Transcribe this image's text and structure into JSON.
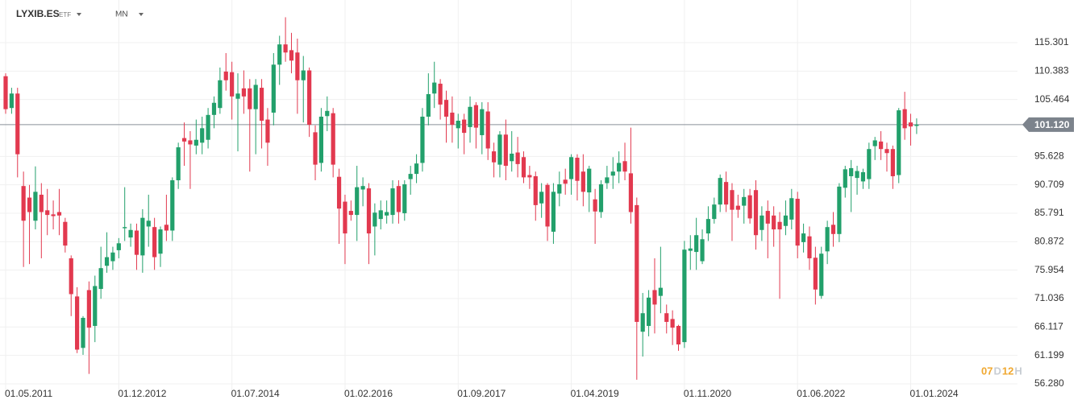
{
  "chart_data": {
    "type": "candlestick",
    "title": "LYXIB.ES",
    "instrument_type": "ETF",
    "timeframe": "MN",
    "countdown": [
      "07",
      "D",
      "12",
      "H"
    ],
    "up_color": "#22a06b",
    "down_color": "#e2394f",
    "x": [
      "01.05.2011",
      "01.06.2011",
      "01.07.2011",
      "01.08.2011",
      "01.09.2011",
      "01.10.2011",
      "01.11.2011",
      "01.12.2011",
      "01.01.2012",
      "01.02.2012",
      "01.03.2012",
      "01.04.2012",
      "01.05.2012",
      "01.06.2012",
      "01.07.2012",
      "01.08.2012",
      "01.09.2012",
      "01.10.2012",
      "01.11.2012",
      "01.12.2012",
      "01.01.2013",
      "01.02.2013",
      "01.03.2013",
      "01.04.2013",
      "01.05.2013",
      "01.06.2013",
      "01.07.2013",
      "01.08.2013",
      "01.09.2013",
      "01.10.2013",
      "01.11.2013",
      "01.12.2013",
      "01.01.2014",
      "01.02.2014",
      "01.03.2014",
      "01.04.2014",
      "01.05.2014",
      "01.06.2014",
      "01.07.2014",
      "01.08.2014",
      "01.09.2014",
      "01.10.2014",
      "01.11.2014",
      "01.12.2014",
      "01.01.2015",
      "01.02.2015",
      "01.03.2015",
      "01.04.2015",
      "01.05.2015",
      "01.06.2015",
      "01.07.2015",
      "01.08.2015",
      "01.09.2015",
      "01.10.2015",
      "01.11.2015",
      "01.12.2015",
      "01.01.2016",
      "01.02.2016",
      "01.03.2016",
      "01.04.2016",
      "01.05.2016",
      "01.06.2016",
      "01.07.2016",
      "01.08.2016",
      "01.09.2016",
      "01.10.2016",
      "01.11.2016",
      "01.12.2016",
      "01.01.2017",
      "01.02.2017",
      "01.03.2017",
      "01.04.2017",
      "01.05.2017",
      "01.06.2017",
      "01.07.2017",
      "01.08.2017",
      "01.09.2017",
      "01.10.2017",
      "01.11.2017",
      "01.12.2017",
      "01.01.2018",
      "01.02.2018",
      "01.03.2018",
      "01.04.2018",
      "01.05.2018",
      "01.06.2018",
      "01.07.2018",
      "01.08.2018",
      "01.09.2018",
      "01.10.2018",
      "01.11.2018",
      "01.12.2018",
      "01.01.2019",
      "01.02.2019",
      "01.03.2019",
      "01.04.2019",
      "01.05.2019",
      "01.06.2019",
      "01.07.2019",
      "01.08.2019",
      "01.09.2019",
      "01.10.2019",
      "01.11.2019",
      "01.12.2019",
      "01.01.2020",
      "01.02.2020",
      "01.03.2020",
      "01.04.2020",
      "01.05.2020",
      "01.06.2020",
      "01.07.2020",
      "01.08.2020",
      "01.09.2020",
      "01.10.2020",
      "01.11.2020",
      "01.12.2020",
      "01.01.2021",
      "01.02.2021",
      "01.03.2021",
      "01.04.2021",
      "01.05.2021",
      "01.06.2021",
      "01.07.2021",
      "01.08.2021",
      "01.09.2021",
      "01.10.2021",
      "01.11.2021",
      "01.12.2021",
      "01.01.2022",
      "01.02.2022",
      "01.03.2022",
      "01.04.2022",
      "01.05.2022",
      "01.06.2022",
      "01.07.2022",
      "01.08.2022",
      "01.09.2022",
      "01.10.2022",
      "01.11.2022",
      "01.12.2022",
      "01.01.2023",
      "01.02.2023",
      "01.03.2023",
      "01.04.2023",
      "01.05.2023",
      "01.06.2023",
      "01.07.2023",
      "01.08.2023",
      "01.09.2023",
      "01.10.2023",
      "01.11.2023",
      "01.12.2023",
      "01.01.2024",
      "01.02.2024"
    ],
    "open": [
      109.5,
      104,
      106.5,
      90.5,
      88.5,
      84.5,
      89,
      86.3,
      85.6,
      86,
      84.3,
      78,
      71.4,
      62.5,
      72.5,
      66.3,
      72.7,
      76.7,
      77.5,
      79.4,
      83.2,
      81.6,
      82.8,
      78.5,
      83.5,
      83.4,
      78.8,
      83.8,
      82.8,
      91.5,
      98.8,
      98.4,
      97.5,
      98,
      98.5,
      102.8,
      104,
      110.3,
      110.2,
      105.6,
      107.4,
      107.4,
      103.8,
      107.5,
      102,
      103.2,
      111.5,
      115,
      114,
      113.6,
      108.8,
      110.5,
      99.8,
      94.5,
      102.6,
      103.1,
      92.1,
      87.8,
      86.2,
      85.5,
      89.9,
      90.1,
      83.5,
      84.8,
      85.4,
      85.5,
      90.5,
      85.8,
      91.7,
      92.6,
      94.5,
      102.5,
      106.5,
      108.2,
      105.4,
      103.2,
      100.5,
      102,
      100.7,
      104.5,
      99.3,
      103.4,
      96.5,
      94.2,
      99.4,
      94.8,
      96.3,
      95.5,
      92.4,
      92.2,
      87.5,
      90.7,
      82.6,
      89.2,
      91.6,
      91.7,
      95.4,
      93,
      89.4,
      88.2,
      86,
      91,
      92.3,
      93,
      94.8,
      92.7,
      87.2,
      65.3,
      66.3,
      72.5,
      71.5,
      68.5,
      67.5,
      66.3,
      63.5,
      79.3,
      79.1,
      77.5,
      82.3,
      84.8,
      87.3,
      91.2,
      89.8,
      87.1,
      87.1,
      88.9,
      89.8,
      82.9,
      86.2,
      85.4,
      84.3,
      83.6,
      84.7,
      88.3,
      80.8,
      81.8,
      78.1,
      71.5,
      79.2,
      83.8,
      82.2,
      90.2,
      92.2,
      91.9,
      91.3,
      91.7,
      97.4,
      98.2,
      96.9,
      96.9,
      92.4,
      103.8,
      101.5,
      100.9
    ],
    "high": [
      110,
      107.5,
      107.5,
      93,
      90.7,
      93.9,
      91,
      90,
      88,
      90,
      85,
      78.5,
      73,
      68,
      74,
      75,
      80,
      82.5,
      80,
      81.5,
      90.3,
      84,
      84,
      86.5,
      89,
      85,
      83.5,
      89,
      92,
      98,
      101.5,
      100,
      102,
      102.5,
      104,
      106,
      111,
      113.5,
      112,
      110,
      110.5,
      109,
      109,
      109,
      104,
      113.5,
      116.5,
      119.7,
      117,
      116,
      113,
      111,
      101,
      104,
      106,
      104,
      93.5,
      89,
      88,
      94,
      92,
      91,
      87.5,
      88,
      88,
      91.5,
      91.5,
      91.5,
      94,
      96,
      104,
      110,
      112,
      109,
      107,
      106,
      103,
      103,
      106,
      105,
      105,
      105,
      98,
      100,
      102,
      100,
      99,
      96.5,
      94,
      93,
      91,
      91,
      91,
      93,
      93.5,
      96,
      96,
      96,
      94,
      90,
      91.5,
      94,
      95.5,
      96.5,
      98,
      100.6,
      88.5,
      72,
      72.5,
      78,
      80,
      70,
      69,
      66.5,
      81,
      82,
      85,
      83,
      87,
      88.5,
      92.5,
      93,
      91,
      89,
      90,
      90,
      91.5,
      87,
      88,
      87,
      86,
      88,
      90,
      89.5,
      84,
      83.5,
      80,
      80,
      84.5,
      86,
      91,
      94,
      95,
      94,
      93.5,
      98,
      99,
      100,
      98,
      97.5,
      104,
      106.8,
      103,
      102.2
    ],
    "low": [
      103,
      103,
      92,
      76.5,
      77,
      83,
      78,
      82,
      83,
      82,
      79,
      68,
      61.6,
      61.3,
      58,
      63.5,
      71,
      75.5,
      76,
      78,
      81,
      80,
      76,
      75.5,
      80,
      76,
      76.5,
      81,
      81,
      90,
      94,
      90,
      96,
      96,
      97,
      100.5,
      103,
      107,
      102,
      96.5,
      103,
      93,
      96,
      97,
      94,
      101,
      108,
      112,
      110,
      103,
      101.5,
      99,
      91.5,
      93,
      100,
      92,
      80.5,
      77,
      84.5,
      81,
      87,
      77,
      78.5,
      83,
      84,
      84,
      84,
      84.5,
      89,
      91,
      93,
      101,
      104,
      102,
      98,
      98,
      97,
      96,
      98,
      97,
      96,
      95,
      92,
      92,
      91.5,
      93,
      92,
      91,
      90,
      84.5,
      85,
      81,
      80.5,
      87,
      89,
      89,
      88,
      87,
      86,
      80.5,
      85,
      90,
      90,
      91,
      91.5,
      84,
      57,
      61,
      64.5,
      65,
      68.5,
      65,
      63,
      62,
      62.5,
      76,
      76,
      77,
      81,
      84,
      86,
      86,
      81,
      85,
      84,
      84,
      79.5,
      81,
      78,
      80,
      71,
      82,
      83,
      78,
      79,
      76,
      70,
      71,
      77,
      80,
      80.8,
      88.5,
      86,
      89,
      90,
      90,
      95,
      95,
      93,
      90,
      91,
      98.5,
      97.5,
      99.5
    ],
    "close": [
      103.8,
      106.5,
      96,
      84.5,
      86,
      89.5,
      86,
      85.5,
      85.3,
      85.4,
      80.2,
      71.8,
      62.2,
      67.7,
      66,
      73.2,
      76.3,
      78.2,
      79,
      80.6,
      83.4,
      82.9,
      78.6,
      85,
      84.5,
      78.2,
      83,
      82.8,
      91.5,
      97.2,
      98.2,
      97.7,
      98.5,
      100.5,
      102.8,
      104.9,
      108.8,
      108.8,
      106,
      106.5,
      106,
      103.8,
      108,
      101.8,
      98,
      111.5,
      115,
      113.6,
      112.2,
      108.8,
      110.5,
      101.1,
      94.2,
      102.5,
      103.5,
      94.2,
      86.6,
      82.3,
      85.5,
      90.3,
      90.5,
      82.3,
      85.9,
      86.3,
      86,
      90.1,
      86,
      90.8,
      92.6,
      94.4,
      102.5,
      106.4,
      108.4,
      104.6,
      102.5,
      101.1,
      101.8,
      99.7,
      104.2,
      100.6,
      103.8,
      97,
      94.6,
      99.4,
      94,
      96.1,
      94.3,
      92,
      92,
      87.2,
      89.5,
      83.5,
      89.5,
      90.8,
      90.9,
      95.5,
      91.4,
      89.5,
      93.5,
      86.1,
      90.8,
      92,
      93,
      94.5,
      93,
      86,
      67,
      68.5,
      71.2,
      70,
      72.9,
      67,
      66,
      63.1,
      79.5,
      79.7,
      82,
      81.3,
      84.8,
      87.3,
      91.9,
      87.3,
      86.4,
      86.4,
      88.6,
      84.9,
      82,
      85.4,
      84,
      83,
      83,
      85.4,
      88.4,
      80.2,
      82.3,
      78,
      72.6,
      78.8,
      83.4,
      82.2,
      90.4,
      93.4,
      93.6,
      93.1,
      92.9,
      96.9,
      98.4,
      96.9,
      96.2,
      92.2,
      103.6,
      100.5,
      100.8,
      101.12
    ],
    "xticks": [
      "01.05.2011",
      "01.12.2012",
      "01.07.2014",
      "01.02.2016",
      "01.09.2017",
      "01.04.2019",
      "01.11.2020",
      "01.06.2022",
      "01.01.2024"
    ],
    "ylim": [
      54.47,
      121.29
    ],
    "yticks": [
      {
        "value": 56.28,
        "label": "56.280"
      },
      61.199,
      66.117,
      71.036,
      75.954,
      80.872,
      85.791,
      90.709,
      95.628,
      105.464,
      110.383,
      115.301
    ],
    "last_price": {
      "value": 101.12,
      "label": "101.120"
    },
    "grid": true
  }
}
